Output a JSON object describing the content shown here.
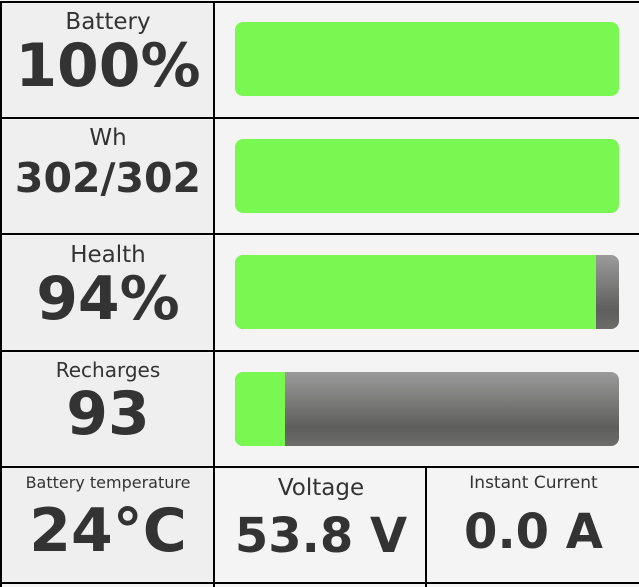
{
  "colors": {
    "fill": "#78f850",
    "empty": "#6a6a6a",
    "grid": "#000000",
    "text": "#333333"
  },
  "rows": [
    {
      "label": "Battery",
      "value": "100%",
      "level_percent": 100
    },
    {
      "label": "Wh",
      "value": "302/302",
      "level_percent": 100
    },
    {
      "label": "Health",
      "value": "94%",
      "level_percent": 94
    },
    {
      "label": "Recharges",
      "value": "93",
      "level_percent": 13
    }
  ],
  "bottom": [
    {
      "label": "Battery temperature",
      "value": "24°C"
    },
    {
      "label": "Voltage",
      "value": "53.8 V"
    },
    {
      "label": "Instant Current",
      "value": "0.0 A"
    }
  ]
}
